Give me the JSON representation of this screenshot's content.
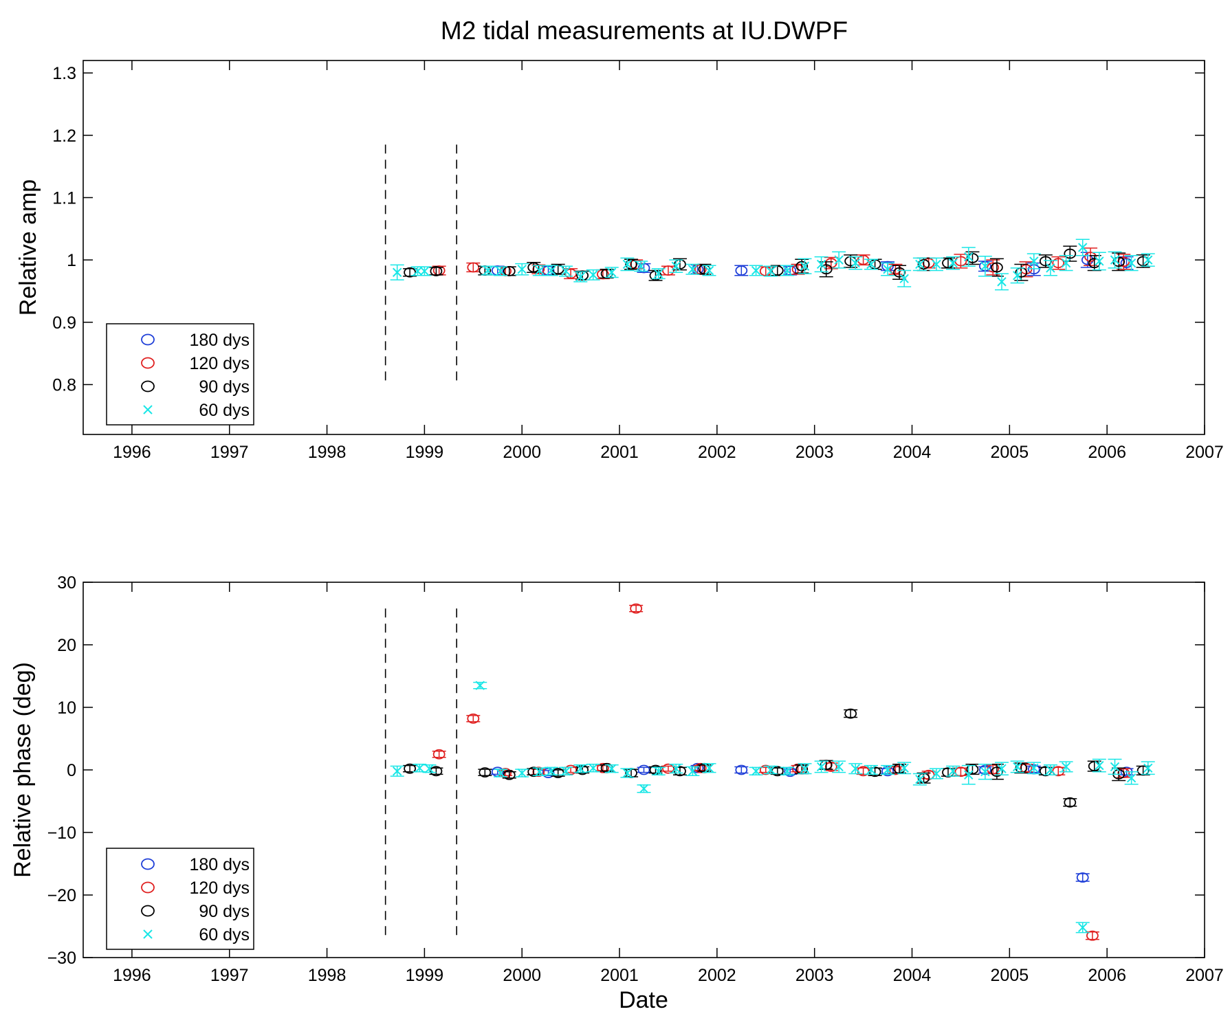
{
  "figure": {
    "title": "M2 tidal measurements at IU.DWPF"
  },
  "colors": {
    "180 dys": "#1f3fd8",
    "120 dys": "#e02020",
    "90 dys": "#000000",
    "60 dys": "#19e6e6",
    "axis": "#000000",
    "vline": "#000000"
  },
  "chart_data": [
    {
      "type": "scatter",
      "title": "M2 tidal measurements at IU.DWPF",
      "xlabel": "",
      "ylabel": "Relative amp",
      "xlim": [
        1995.5,
        2007
      ],
      "ylim": [
        0.72,
        1.32
      ],
      "xticks": [
        1996,
        1997,
        1998,
        1999,
        2000,
        2001,
        2002,
        2003,
        2004,
        2005,
        2006,
        2007
      ],
      "yticks": [
        0.8,
        0.9,
        1,
        1.1,
        1.2,
        1.3
      ],
      "ytick_labels": [
        "0.8",
        "0.9",
        "1",
        "1.1",
        "1.2",
        "1.3"
      ],
      "grid": false,
      "legend": "bottom-left",
      "vlines": [
        1998.6,
        1999.33
      ],
      "vline_range": [
        0.8,
        1.185
      ],
      "series": [
        {
          "name": "180 dys",
          "marker": "circle",
          "x": [
            1999.75,
            2000.27,
            2001.25,
            2001.8,
            2002.25,
            2002.75,
            2003.75,
            2004.75,
            2005.25,
            2005.8,
            2006.2
          ],
          "y": [
            0.983,
            0.983,
            0.987,
            0.985,
            0.983,
            0.983,
            0.99,
            0.99,
            0.985,
            1.0,
            0.995
          ],
          "err": [
            0.007,
            0.007,
            0.007,
            0.007,
            0.008,
            0.007,
            0.007,
            0.008,
            0.01,
            0.012,
            0.01
          ]
        },
        {
          "name": "120 dys",
          "marker": "circle",
          "x": [
            1999.15,
            1999.5,
            1999.83,
            2000.17,
            2000.5,
            2000.83,
            2001.17,
            2001.5,
            2001.83,
            2002.5,
            2002.83,
            2003.17,
            2003.5,
            2003.83,
            2004.17,
            2004.5,
            2004.83,
            2005.17,
            2005.5,
            2005.83,
            2006.17
          ],
          "y": [
            0.983,
            0.988,
            0.982,
            0.985,
            0.978,
            0.977,
            0.993,
            0.983,
            0.985,
            0.982,
            0.985,
            0.995,
            1.0,
            0.985,
            0.995,
            0.998,
            0.988,
            0.985,
            0.995,
            1.005,
            0.997
          ],
          "err": [
            0.007,
            0.007,
            0.007,
            0.007,
            0.008,
            0.007,
            0.007,
            0.007,
            0.007,
            0.007,
            0.008,
            0.009,
            0.008,
            0.008,
            0.008,
            0.011,
            0.012,
            0.012,
            0.01,
            0.014,
            0.012
          ]
        },
        {
          "name": "90 dys",
          "marker": "circle",
          "x": [
            1998.85,
            1999.12,
            1999.62,
            1999.87,
            2000.12,
            2000.37,
            2000.62,
            2000.87,
            2001.12,
            2001.37,
            2001.62,
            2001.87,
            2002.62,
            2002.87,
            2003.12,
            2003.37,
            2003.62,
            2003.87,
            2004.12,
            2004.37,
            2004.62,
            2004.87,
            2005.12,
            2005.37,
            2005.62,
            2005.87,
            2006.12,
            2006.37
          ],
          "y": [
            0.98,
            0.982,
            0.983,
            0.982,
            0.988,
            0.985,
            0.975,
            0.978,
            0.993,
            0.975,
            0.993,
            0.985,
            0.983,
            0.99,
            0.985,
            0.998,
            0.993,
            0.98,
            0.993,
            0.995,
            1.003,
            0.988,
            0.98,
            0.998,
            1.01,
            0.995,
            0.997,
            0.998
          ],
          "err": [
            0.006,
            0.006,
            0.007,
            0.007,
            0.008,
            0.008,
            0.007,
            0.007,
            0.008,
            0.008,
            0.009,
            0.008,
            0.008,
            0.011,
            0.012,
            0.01,
            0.008,
            0.011,
            0.01,
            0.008,
            0.01,
            0.014,
            0.013,
            0.01,
            0.012,
            0.012,
            0.014,
            0.01
          ]
        },
        {
          "name": "60 dys",
          "marker": "x",
          "x": [
            1998.72,
            1998.93,
            1999.0,
            1999.65,
            1999.78,
            2000.0,
            2000.18,
            2000.3,
            2000.45,
            2000.6,
            2000.73,
            2000.92,
            2001.08,
            2001.22,
            2001.4,
            2001.58,
            2001.75,
            2001.92,
            2002.4,
            2002.55,
            2002.72,
            2002.9,
            2003.07,
            2003.25,
            2003.42,
            2003.58,
            2003.75,
            2003.92,
            2004.08,
            2004.25,
            2004.42,
            2004.58,
            2004.75,
            2004.92,
            2005.08,
            2005.25,
            2005.42,
            2005.58,
            2005.75,
            2005.92,
            2006.08,
            2006.25,
            2006.42
          ],
          "y": [
            0.98,
            0.982,
            0.982,
            0.983,
            0.982,
            0.985,
            0.983,
            0.983,
            0.982,
            0.973,
            0.976,
            0.98,
            0.993,
            0.99,
            0.978,
            0.99,
            0.985,
            0.983,
            0.983,
            0.982,
            0.983,
            0.99,
            0.993,
            1.0,
            0.995,
            0.993,
            0.985,
            0.97,
            0.993,
            0.993,
            0.995,
            1.005,
            0.99,
            0.965,
            0.975,
            0.998,
            0.987,
            0.995,
            1.02,
            0.998,
            1.0,
            0.995,
            1.0
          ],
          "err": [
            0.012,
            0.007,
            0.007,
            0.007,
            0.007,
            0.009,
            0.008,
            0.008,
            0.008,
            0.008,
            0.008,
            0.008,
            0.01,
            0.008,
            0.008,
            0.01,
            0.008,
            0.008,
            0.008,
            0.008,
            0.008,
            0.012,
            0.012,
            0.013,
            0.01,
            0.008,
            0.01,
            0.013,
            0.01,
            0.01,
            0.01,
            0.015,
            0.016,
            0.013,
            0.012,
            0.012,
            0.012,
            0.012,
            0.013,
            0.014,
            0.013,
            0.012,
            0.01
          ]
        }
      ]
    },
    {
      "type": "scatter",
      "title": "",
      "xlabel": "Date",
      "ylabel": "Relative phase (deg)",
      "xlim": [
        1995.5,
        2007
      ],
      "ylim": [
        -30,
        30
      ],
      "xticks": [
        1996,
        1997,
        1998,
        1999,
        2000,
        2001,
        2002,
        2003,
        2004,
        2005,
        2006,
        2007
      ],
      "yticks": [
        -30,
        -20,
        -10,
        0,
        10,
        20,
        30
      ],
      "ytick_labels": [
        "−30",
        "−20",
        "−10",
        "0",
        "10",
        "20",
        "30"
      ],
      "grid": false,
      "legend": "bottom-left",
      "vlines": [
        1998.6,
        1999.33
      ],
      "vline_range": [
        -26.5,
        25.8
      ],
      "series": [
        {
          "name": "180 dys",
          "marker": "circle",
          "x": [
            1999.75,
            2000.27,
            2001.25,
            2001.8,
            2002.25,
            2002.75,
            2003.75,
            2004.75,
            2005.25,
            2005.75,
            2006.2
          ],
          "y": [
            -0.3,
            -0.5,
            0.0,
            0.3,
            0.0,
            -0.3,
            -0.2,
            0.0,
            0.1,
            -17.2,
            -0.3
          ],
          "err": [
            0.4,
            0.4,
            0.4,
            0.4,
            0.5,
            0.4,
            0.4,
            0.5,
            0.5,
            0.6,
            0.5
          ]
        },
        {
          "name": "120 dys",
          "marker": "circle",
          "x": [
            1999.15,
            1999.5,
            1999.83,
            2000.17,
            2000.5,
            2000.83,
            2001.17,
            2001.5,
            2001.83,
            2002.5,
            2002.83,
            2003.17,
            2003.5,
            2003.83,
            2004.17,
            2004.5,
            2004.83,
            2005.17,
            2005.5,
            2005.85,
            2006.17
          ],
          "y": [
            2.5,
            8.2,
            -0.5,
            -0.3,
            0.0,
            0.3,
            25.8,
            0.2,
            0.3,
            0.0,
            0.2,
            0.5,
            -0.2,
            0.0,
            -0.8,
            -0.3,
            0.1,
            0.3,
            -0.2,
            -26.5,
            -0.5
          ],
          "err": [
            0.5,
            0.5,
            0.4,
            0.4,
            0.4,
            0.4,
            0.5,
            0.4,
            0.4,
            0.4,
            0.5,
            0.6,
            0.5,
            0.5,
            0.6,
            0.6,
            0.7,
            0.6,
            0.6,
            0.6,
            0.7
          ]
        },
        {
          "name": "90 dys",
          "marker": "circle",
          "x": [
            1998.85,
            1999.12,
            1999.62,
            1999.87,
            2000.12,
            2000.37,
            2000.62,
            2000.87,
            2001.12,
            2001.37,
            2001.62,
            2001.87,
            2002.62,
            2002.87,
            2003.12,
            2003.37,
            2003.62,
            2003.87,
            2004.12,
            2004.37,
            2004.62,
            2004.87,
            2005.12,
            2005.37,
            2005.62,
            2005.87,
            2006.12,
            2006.37
          ],
          "y": [
            0.2,
            -0.2,
            -0.4,
            -0.8,
            -0.3,
            -0.5,
            0.0,
            0.3,
            -0.5,
            0.0,
            -0.2,
            0.3,
            -0.2,
            0.1,
            0.8,
            9.0,
            -0.3,
            0.2,
            -1.3,
            -0.4,
            0.1,
            -0.3,
            0.3,
            -0.2,
            -5.2,
            0.6,
            -0.7,
            -0.1
          ],
          "err": [
            0.5,
            0.5,
            0.5,
            0.5,
            0.5,
            0.5,
            0.5,
            0.5,
            0.6,
            0.5,
            0.6,
            0.5,
            0.5,
            0.7,
            0.7,
            0.6,
            0.6,
            0.7,
            0.8,
            0.6,
            0.8,
            1.2,
            0.8,
            0.6,
            0.6,
            0.8,
            1.0,
            0.7
          ]
        },
        {
          "name": "60 dys",
          "marker": "x",
          "x": [
            1998.72,
            1998.95,
            1999.05,
            1999.57,
            1999.78,
            2000.0,
            2000.18,
            2000.3,
            2000.45,
            2000.6,
            2000.73,
            2000.92,
            2001.08,
            2001.25,
            2001.4,
            2001.58,
            2001.75,
            2001.92,
            2002.4,
            2002.55,
            2002.72,
            2002.9,
            2003.07,
            2003.25,
            2003.42,
            2003.58,
            2003.75,
            2003.92,
            2004.08,
            2004.25,
            2004.42,
            2004.58,
            2004.75,
            2004.92,
            2005.08,
            2005.25,
            2005.42,
            2005.58,
            2005.75,
            2005.92,
            2006.08,
            2006.25,
            2006.42
          ],
          "y": [
            -0.2,
            0.3,
            0.2,
            13.5,
            -0.5,
            -0.5,
            -0.3,
            -0.2,
            -0.2,
            0.2,
            0.3,
            0.2,
            -0.5,
            -3.0,
            -0.2,
            0.2,
            -0.2,
            0.3,
            -0.2,
            0.0,
            -0.2,
            0.2,
            0.5,
            0.5,
            0.2,
            0.0,
            0.0,
            0.3,
            -1.5,
            -0.6,
            -0.2,
            -0.8,
            -0.3,
            0.2,
            0.5,
            0.3,
            0.0,
            0.5,
            -25.2,
            0.7,
            0.5,
            -1.3,
            0.3
          ],
          "err": [
            0.8,
            0.6,
            0.6,
            0.5,
            0.6,
            0.6,
            0.6,
            0.6,
            0.6,
            0.6,
            0.6,
            0.6,
            0.7,
            0.6,
            0.6,
            0.7,
            0.7,
            0.7,
            0.6,
            0.6,
            0.6,
            0.8,
            0.9,
            0.9,
            0.8,
            0.7,
            0.7,
            0.9,
            0.9,
            0.8,
            0.8,
            1.5,
            1.2,
            1.0,
            0.9,
            0.9,
            0.8,
            0.8,
            0.8,
            1.0,
            1.2,
            1.0,
            1.0
          ]
        }
      ]
    }
  ]
}
